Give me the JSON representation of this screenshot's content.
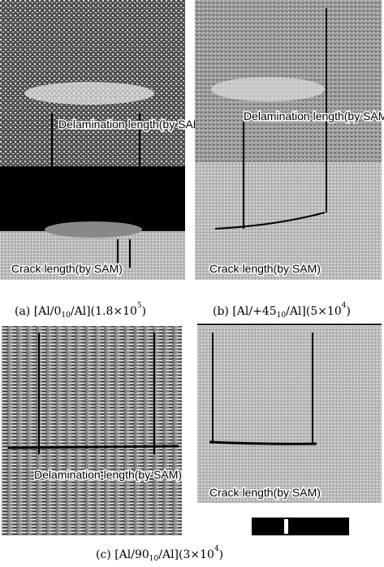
{
  "panels": [
    {
      "delamination_label": "Delamination length(by SAM)",
      "crack_label": "Crack length(by SAM)",
      "caption": {
        "prefix": "(a) [Al/0",
        "sub": "10",
        "middle": "/Al](1.8×10",
        "sup": "5",
        "suffix": ")"
      }
    },
    {
      "delamination_label": "Delamination length(by SAM)",
      "crack_label": "Crack length(by SAM)",
      "caption": {
        "prefix": "(b) [Al/+45",
        "sub": "10",
        "middle": "/Al](5×10",
        "sup": "4",
        "suffix": ")"
      }
    },
    {
      "delamination_label": "Delamination length(by SAM)",
      "crack_label": "Crack length(by SAM)",
      "caption": {
        "prefix": "(c) [Al/90",
        "sub": "10",
        "middle": "/Al](3×10",
        "sup": "4",
        "suffix": ")"
      }
    }
  ]
}
